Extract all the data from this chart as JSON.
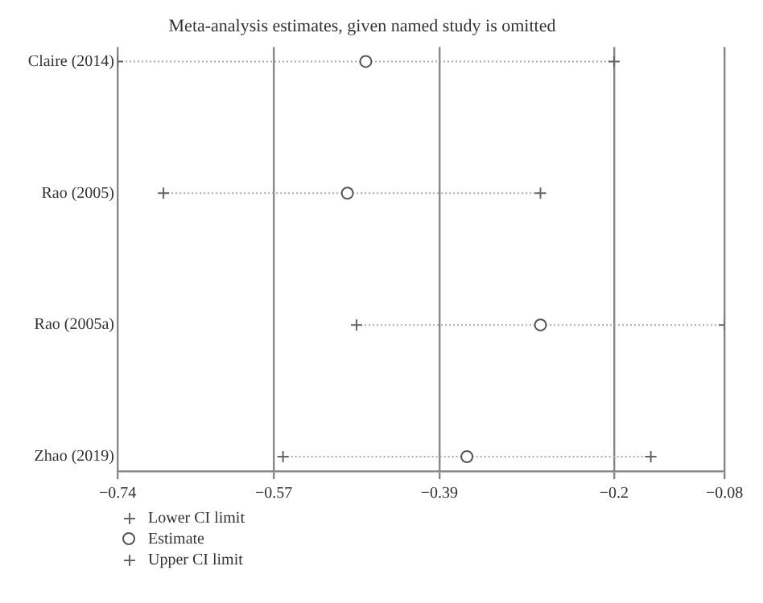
{
  "chart_data": {
    "type": "scatter",
    "orientation": "horizontal",
    "title": "Meta-analysis estimates, given named study is omitted",
    "categories": [
      "Claire (2014)",
      "Rao (2005)",
      "Rao (2005a)",
      "Zhao (2019)"
    ],
    "series": [
      {
        "name": "Lower CI limit",
        "color": "#666666",
        "marker": "cross",
        "values": [
          -0.74,
          -0.69,
          -0.48,
          -0.56
        ]
      },
      {
        "name": "Estimate",
        "color": "#555555",
        "marker": "circle",
        "values": [
          -0.47,
          -0.49,
          -0.28,
          -0.36
        ]
      },
      {
        "name": "Upper CI limit",
        "color": "#666666",
        "marker": "cross",
        "values": [
          -0.2,
          -0.28,
          -0.08,
          -0.16
        ]
      }
    ],
    "xlim": [
      -0.74,
      -0.08
    ],
    "xticks": [
      -0.74,
      -0.57,
      -0.39,
      -0.2,
      -0.08
    ],
    "grid": "x",
    "legend": "bottom left"
  }
}
